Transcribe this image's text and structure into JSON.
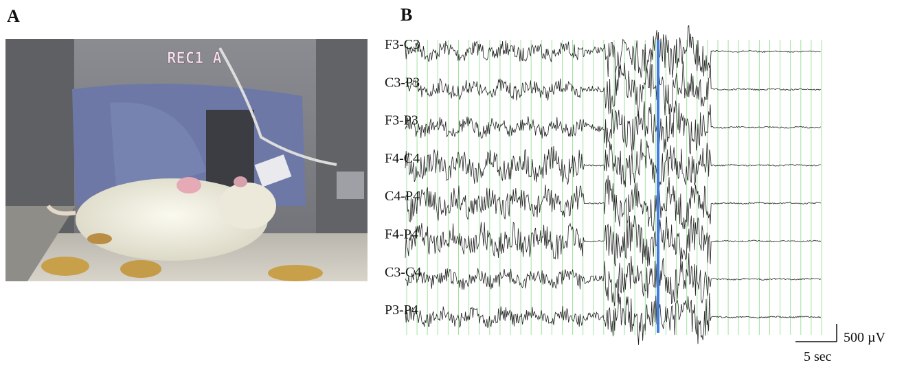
{
  "panel_a": {
    "label": "A",
    "overlay": "REC1 A"
  },
  "panel_b": {
    "label": "B",
    "channels": [
      "F3-C3",
      "C3-P3",
      "F3-P3",
      "F4-C4",
      "C4-P4",
      "F4-P4",
      "C3-C4",
      "P3-P4"
    ],
    "scale_bar": {
      "amplitude": "500 µV",
      "time": "5 sec"
    }
  }
}
